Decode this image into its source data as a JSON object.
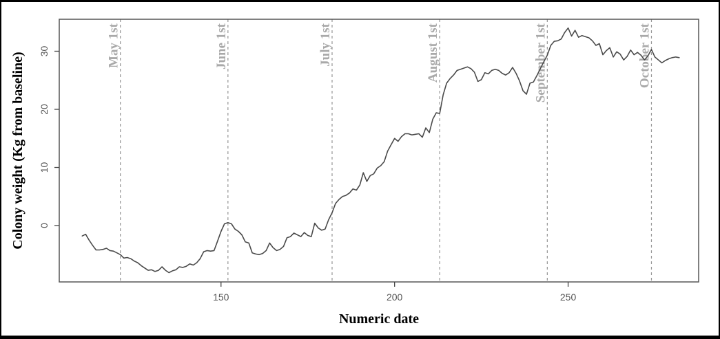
{
  "figure": {
    "border_color": "#000000",
    "background_color": "#ffffff"
  },
  "chart_data": {
    "type": "line",
    "title": "",
    "xlabel": "Numeric date",
    "ylabel": "Colony weight (Kg from baseline)",
    "x_ticks": [
      150,
      200,
      250
    ],
    "y_ticks": [
      0,
      10,
      20,
      30
    ],
    "x_range": [
      103.4,
      287.6
    ],
    "y_range": [
      -9.7,
      35.5
    ],
    "grid": false,
    "legend": "none",
    "line_color": "#4a4a4a",
    "plot_box_color": "#555555",
    "tick_label_color": "#555555",
    "event_line_color": "#949494",
    "event_label_color": "#a9a9a9",
    "event_lines": [
      {
        "day": 121,
        "label": "May 1st"
      },
      {
        "day": 152,
        "label": "June 1st"
      },
      {
        "day": 182,
        "label": "July 1st"
      },
      {
        "day": 213,
        "label": "August 1st"
      },
      {
        "day": 244,
        "label": "September 1st"
      },
      {
        "day": 274,
        "label": "October 1st"
      }
    ],
    "series": [
      {
        "name": "colony-weight",
        "x": [
          110,
          111,
          112,
          113,
          114,
          115,
          116,
          117,
          118,
          119,
          120,
          121,
          122,
          123,
          124,
          125,
          126,
          127,
          128,
          129,
          130,
          131,
          132,
          133,
          134,
          135,
          136,
          137,
          138,
          139,
          140,
          141,
          142,
          143,
          144,
          145,
          146,
          147,
          148,
          149,
          150,
          151,
          152,
          153,
          154,
          155,
          156,
          157,
          158,
          159,
          160,
          161,
          162,
          163,
          164,
          165,
          166,
          167,
          168,
          169,
          170,
          171,
          172,
          173,
          174,
          175,
          176,
          177,
          178,
          179,
          180,
          181,
          182,
          183,
          184,
          185,
          186,
          187,
          188,
          189,
          190,
          191,
          192,
          193,
          194,
          195,
          196,
          197,
          198,
          199,
          200,
          201,
          202,
          203,
          204,
          205,
          206,
          207,
          208,
          209,
          210,
          211,
          212,
          213,
          214,
          215,
          216,
          217,
          218,
          219,
          220,
          221,
          222,
          223,
          224,
          225,
          226,
          227,
          228,
          229,
          230,
          231,
          232,
          233,
          234,
          235,
          236,
          237,
          238,
          239,
          240,
          241,
          242,
          243,
          244,
          245,
          246,
          247,
          248,
          249,
          250,
          251,
          252,
          253,
          254,
          255,
          256,
          257,
          258,
          259,
          260,
          261,
          262,
          263,
          264,
          265,
          266,
          267,
          268,
          269,
          270,
          271,
          272,
          273,
          274,
          275,
          276,
          277,
          278,
          279,
          280,
          281,
          282
        ],
        "y": [
          -1.8,
          -1.5,
          -2.5,
          -3.4,
          -4.2,
          -4.2,
          -4.1,
          -3.9,
          -4.3,
          -4.4,
          -4.7,
          -5.0,
          -5.6,
          -5.5,
          -5.7,
          -6.1,
          -6.4,
          -6.9,
          -7.3,
          -7.7,
          -7.6,
          -7.9,
          -7.7,
          -7.1,
          -7.7,
          -8.1,
          -7.8,
          -7.6,
          -7.1,
          -7.2,
          -7.0,
          -6.6,
          -6.8,
          -6.4,
          -5.7,
          -4.5,
          -4.3,
          -4.4,
          -4.3,
          -2.7,
          -1.0,
          0.3,
          0.5,
          0.3,
          -0.6,
          -1.0,
          -1.6,
          -2.8,
          -3.0,
          -4.7,
          -4.9,
          -5.0,
          -4.8,
          -4.3,
          -3.0,
          -3.8,
          -4.3,
          -4.1,
          -3.6,
          -2.1,
          -1.9,
          -1.3,
          -1.6,
          -1.9,
          -1.2,
          -1.7,
          -1.9,
          0.4,
          -0.4,
          -0.8,
          -0.6,
          1.0,
          2.2,
          3.8,
          4.5,
          5.0,
          5.2,
          5.6,
          6.3,
          6.1,
          7.0,
          9.1,
          7.6,
          8.6,
          8.9,
          9.9,
          10.3,
          11.0,
          12.8,
          13.9,
          15.0,
          14.5,
          15.3,
          15.8,
          15.8,
          15.6,
          15.7,
          15.8,
          15.2,
          16.8,
          16.0,
          18.3,
          19.4,
          19.3,
          22.5,
          24.5,
          25.3,
          25.9,
          26.7,
          26.9,
          27.1,
          27.3,
          27.0,
          26.4,
          24.8,
          25.1,
          26.3,
          26.1,
          26.7,
          26.9,
          26.7,
          26.2,
          25.9,
          26.3,
          27.2,
          26.2,
          24.9,
          23.2,
          22.6,
          24.5,
          24.7,
          25.8,
          27.0,
          28.2,
          29.3,
          31.0,
          31.7,
          31.8,
          32.1,
          33.2,
          34.0,
          32.6,
          33.6,
          32.4,
          32.7,
          32.5,
          32.3,
          31.8,
          31.0,
          31.3,
          29.4,
          30.1,
          30.6,
          29.0,
          29.9,
          29.5,
          28.5,
          29.1,
          30.2,
          29.4,
          29.8,
          29.3,
          28.5,
          29.2,
          30.3,
          29.0,
          28.5,
          28.0,
          28.4,
          28.7,
          28.9,
          29.0,
          28.9
        ]
      }
    ]
  }
}
